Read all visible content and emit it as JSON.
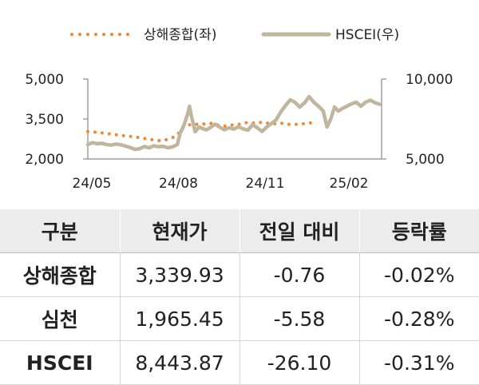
{
  "chart_data": {
    "type": "line",
    "legend_position": "top",
    "series": [
      {
        "name": "상해종합(좌)",
        "axis": "left",
        "style": "dotted",
        "color": "#ee8833",
        "points": [
          [
            0,
            3030
          ],
          [
            5,
            3020
          ],
          [
            10,
            3000
          ],
          [
            15,
            2980
          ],
          [
            20,
            2960
          ],
          [
            25,
            2930
          ],
          [
            30,
            2910
          ],
          [
            35,
            2880
          ],
          [
            40,
            2870
          ],
          [
            45,
            2850
          ],
          [
            50,
            2820
          ],
          [
            55,
            2800
          ],
          [
            60,
            2770
          ],
          [
            65,
            2740
          ],
          [
            70,
            2710
          ],
          [
            75,
            2690
          ],
          [
            80,
            2700
          ],
          [
            85,
            2740
          ],
          [
            90,
            2800
          ],
          [
            95,
            2900
          ],
          [
            100,
            3150
          ],
          [
            105,
            3250
          ],
          [
            110,
            3300
          ],
          [
            115,
            3300
          ],
          [
            120,
            3320
          ],
          [
            125,
            3310
          ],
          [
            130,
            3340
          ],
          [
            135,
            3320
          ],
          [
            140,
            3250
          ],
          [
            145,
            3230
          ],
          [
            150,
            3260
          ],
          [
            155,
            3280
          ],
          [
            160,
            3300
          ],
          [
            165,
            3340
          ],
          [
            170,
            3370
          ],
          [
            175,
            3350
          ],
          [
            180,
            3360
          ],
          [
            185,
            3380
          ],
          [
            190,
            3350
          ],
          [
            195,
            3330
          ],
          [
            200,
            3320
          ],
          [
            205,
            3340
          ],
          [
            210,
            3330
          ],
          [
            215,
            3290
          ],
          [
            220,
            3300
          ],
          [
            225,
            3310
          ],
          [
            230,
            3330
          ],
          [
            235,
            3350
          ],
          [
            240,
            3360
          ]
        ]
      },
      {
        "name": "HSCEI(우)",
        "axis": "right",
        "style": "solid",
        "color": "#c2b59e",
        "points": [
          [
            0,
            5900
          ],
          [
            5,
            6020
          ],
          [
            10,
            5950
          ],
          [
            15,
            5980
          ],
          [
            20,
            5900
          ],
          [
            25,
            5870
          ],
          [
            30,
            5930
          ],
          [
            35,
            5890
          ],
          [
            40,
            5800
          ],
          [
            45,
            5720
          ],
          [
            50,
            5600
          ],
          [
            55,
            5640
          ],
          [
            60,
            5780
          ],
          [
            65,
            5700
          ],
          [
            70,
            5820
          ],
          [
            75,
            5770
          ],
          [
            80,
            5790
          ],
          [
            85,
            5700
          ],
          [
            90,
            5760
          ],
          [
            95,
            5900
          ],
          [
            98,
            6600
          ],
          [
            102,
            7100
          ],
          [
            106,
            7800
          ],
          [
            108,
            8300
          ],
          [
            110,
            7700
          ],
          [
            114,
            6700
          ],
          [
            118,
            7000
          ],
          [
            122,
            6900
          ],
          [
            126,
            6820
          ],
          [
            130,
            6960
          ],
          [
            135,
            7180
          ],
          [
            140,
            7000
          ],
          [
            145,
            6820
          ],
          [
            150,
            6950
          ],
          [
            155,
            6870
          ],
          [
            160,
            7020
          ],
          [
            165,
            6880
          ],
          [
            170,
            6800
          ],
          [
            175,
            7150
          ],
          [
            180,
            6950
          ],
          [
            185,
            6720
          ],
          [
            190,
            7000
          ],
          [
            195,
            7220
          ],
          [
            200,
            7450
          ],
          [
            205,
            7950
          ],
          [
            210,
            8350
          ],
          [
            215,
            8700
          ],
          [
            220,
            8550
          ],
          [
            225,
            8250
          ],
          [
            230,
            8500
          ],
          [
            235,
            8900
          ],
          [
            240,
            8550
          ],
          [
            245,
            8300
          ],
          [
            250,
            8000
          ],
          [
            254,
            7000
          ],
          [
            258,
            7500
          ],
          [
            262,
            8250
          ],
          [
            266,
            8000
          ],
          [
            270,
            8150
          ],
          [
            275,
            8300
          ],
          [
            280,
            8450
          ],
          [
            285,
            8550
          ],
          [
            290,
            8300
          ],
          [
            295,
            8550
          ],
          [
            300,
            8680
          ],
          [
            305,
            8520
          ],
          [
            310,
            8420
          ]
        ]
      }
    ],
    "x_ticks": [
      {
        "pos": 0,
        "label": "24/05"
      },
      {
        "pos": 92,
        "label": "24/08"
      },
      {
        "pos": 184,
        "label": "24/11"
      },
      {
        "pos": 273,
        "label": "25/02"
      }
    ],
    "x_range": [
      0,
      312
    ],
    "y_left": {
      "min": 2000,
      "max": 5000,
      "ticks": [
        "5,000",
        "3,500",
        "2,000"
      ]
    },
    "y_right": {
      "min": 5000,
      "max": 10000,
      "ticks": [
        "10,000",
        "5,000"
      ]
    },
    "grid": false
  },
  "table": {
    "headers": [
      "구분",
      "현재가",
      "전일 대비",
      "등락률"
    ],
    "rows": [
      [
        "상해종합",
        "3,339.93",
        "-0.76",
        "-0.02%"
      ],
      [
        "심천",
        "1,965.45",
        "-5.58",
        "-0.28%"
      ],
      [
        "HSCEI",
        "8,443.87",
        "-26.10",
        "-0.31%"
      ]
    ]
  }
}
